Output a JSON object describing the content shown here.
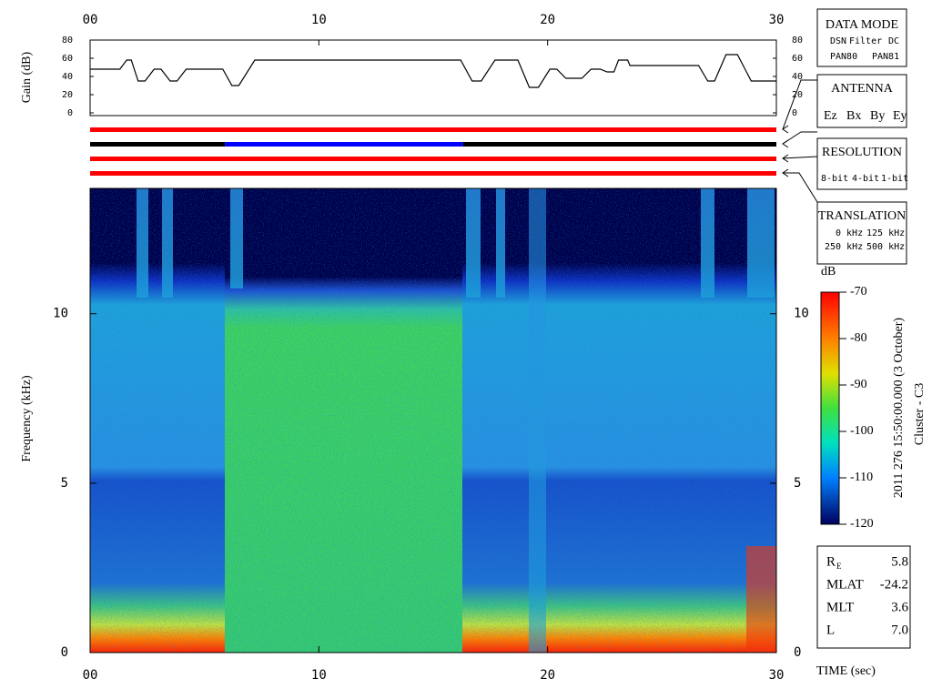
{
  "chart_data": [
    {
      "type": "line",
      "ylabel": "Gain (dB)",
      "xlim": [
        0,
        30
      ],
      "xticks": [
        {
          "value": 0,
          "label": "00"
        },
        10,
        20,
        30
      ],
      "ylim": [
        0,
        80
      ],
      "yticks": [
        0,
        20,
        40,
        60,
        80
      ],
      "series": [
        {
          "color": "#000000",
          "x": [
            0,
            1.3,
            1.6,
            1.8,
            2.1,
            2.4,
            2.8,
            3.1,
            3.5,
            3.8,
            4.2,
            5.8,
            6.2,
            6.5,
            7.2,
            16.2,
            16.7,
            17.1,
            17.7,
            18.7,
            19.2,
            19.6,
            20.1,
            20.4,
            20.8,
            21.5,
            21.9,
            22.3,
            22.6,
            22.9,
            23.1,
            23.5,
            23.6,
            26.6,
            27.0,
            27.3,
            27.8,
            28.3,
            28.9,
            30
          ],
          "values": [
            48,
            48,
            58,
            58,
            35,
            35,
            48,
            48,
            35,
            35,
            48,
            48,
            30,
            30,
            58,
            58,
            35,
            35,
            58,
            58,
            28,
            28,
            48,
            48,
            38,
            38,
            48,
            48,
            45,
            45,
            58,
            58,
            52,
            52,
            35,
            35,
            64,
            64,
            35,
            35
          ]
        }
      ]
    },
    {
      "type": "status",
      "xlim": [
        0,
        30
      ],
      "bars": [
        {
          "segments": [
            {
              "start": 0,
              "end": 30,
              "color": "#ff0000"
            }
          ]
        },
        {
          "segments": [
            {
              "start": 0,
              "end": 5.9,
              "color": "#000000"
            },
            {
              "start": 5.9,
              "end": 16.3,
              "color": "#0000ff"
            },
            {
              "start": 16.3,
              "end": 30,
              "color": "#000000"
            }
          ]
        },
        {
          "segments": [
            {
              "start": 0,
              "end": 30,
              "color": "#ff0000"
            }
          ]
        },
        {
          "segments": [
            {
              "start": 0,
              "end": 30,
              "color": "#ff0000"
            }
          ]
        }
      ]
    },
    {
      "type": "spectrogram",
      "ylabel": "Frequency (kHz)",
      "xlabel": "TIME (sec)",
      "xlim": [
        0,
        30
      ],
      "xticks": [
        {
          "value": 0,
          "label": "00"
        },
        10,
        20,
        30
      ],
      "ylim": [
        0,
        13.7
      ],
      "yticks": [
        0,
        5,
        10
      ]
    },
    {
      "type": "colorbar",
      "label": "dB",
      "ylim": [
        -120,
        -70
      ],
      "yticks": [
        -70,
        -80,
        -90,
        -100,
        -110,
        -120
      ]
    }
  ],
  "legends": [
    {
      "title": "DATA MODE",
      "items": [
        {
          "text": "DSN",
          "color": "#ff0000"
        },
        {
          "text": "Filter",
          "color": "#00cc00"
        },
        {
          "text": "DC",
          "color": "#0000ff"
        },
        {
          "text": "PAN80",
          "color": "#000000"
        },
        {
          "text": "PAN81",
          "color": "#00cccc"
        }
      ]
    },
    {
      "title": "ANTENNA",
      "items": [
        {
          "text": "Ez",
          "color": "#ff0000"
        },
        {
          "text": "Bx",
          "color": "#00cc00"
        },
        {
          "text": "By",
          "color": "#0000ff"
        },
        {
          "text": "Ey",
          "color": "#000000"
        }
      ]
    },
    {
      "title": "RESOLUTION",
      "items": [
        {
          "text": "8-bit",
          "color": "#ff0000"
        },
        {
          "text": "4-bit",
          "color": "#00cc00"
        },
        {
          "text": "1-bit",
          "color": "#0000ff"
        }
      ]
    },
    {
      "title": "TRANSLATION",
      "items": [
        {
          "text": "0 kHz",
          "color": "#ff0000"
        },
        {
          "text": "125 kHz",
          "color": "#00cc00"
        },
        {
          "text": "250 kHz",
          "color": "#0000ff"
        },
        {
          "text": "500 kHz",
          "color": "#000000"
        }
      ]
    }
  ],
  "caption": {
    "date": "2011 276 15:50:00.000 (3 October)",
    "spacecraft": "Cluster - C3"
  },
  "orbit": [
    {
      "label": "R",
      "subscript": "E",
      "value": "5.8"
    },
    {
      "label": "MLAT",
      "value": "-24.2"
    },
    {
      "label": "MLT",
      "value": "3.6"
    },
    {
      "label": "L",
      "value": "7.0"
    }
  ]
}
